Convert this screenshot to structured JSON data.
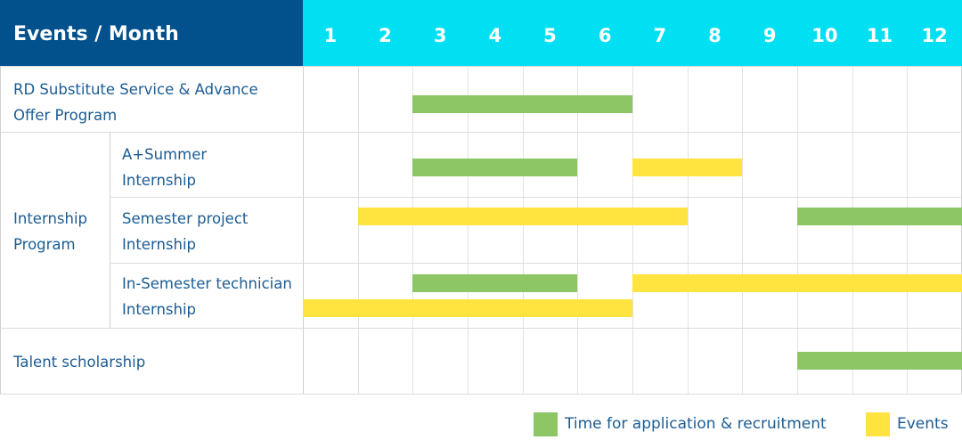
{
  "header": {
    "title": "Events / Month"
  },
  "colors": {
    "header_dark": "#02508C",
    "header_cyan": "#00E0F2",
    "application": "#8CC665",
    "events": "#FFE33F",
    "text": "#1B5C94"
  },
  "rows": {
    "rd": "RD Substitute Service & Advance Offer Program",
    "group": "Internship Program",
    "summer": "A+Summer Internship",
    "semester": "Semester project Internship",
    "technician": "In-Semester technician Internship",
    "talent": "Talent scholarship"
  },
  "legend": {
    "application": "Time for application & recruitment",
    "events": "Events"
  },
  "chart_data": {
    "type": "gantt",
    "xlabel": "Month",
    "categories": [
      "1",
      "2",
      "3",
      "4",
      "5",
      "6",
      "7",
      "8",
      "9",
      "10",
      "11",
      "12"
    ],
    "series": [
      {
        "name": "Time for application & recruitment",
        "color": "#8CC665"
      },
      {
        "name": "Events",
        "color": "#FFE33F"
      }
    ],
    "bars": [
      {
        "row": "RD Substitute Service & Advance Offer Program",
        "series": "Time for application & recruitment",
        "start": 3,
        "end": 6
      },
      {
        "row": "A+Summer Internship",
        "series": "Time for application & recruitment",
        "start": 3,
        "end": 5
      },
      {
        "row": "A+Summer Internship",
        "series": "Events",
        "start": 7,
        "end": 8
      },
      {
        "row": "Semester project Internship",
        "series": "Time for application & recruitment",
        "start": 10,
        "end": 12
      },
      {
        "row": "Semester project Internship",
        "series": "Events",
        "start": 2,
        "end": 7
      },
      {
        "row": "In-Semester technician Internship",
        "series": "Time for application & recruitment",
        "start": 3,
        "end": 5
      },
      {
        "row": "In-Semester technician Internship",
        "series": "Events",
        "start": 7,
        "end": 12
      },
      {
        "row": "In-Semester technician Internship",
        "series": "Events",
        "start": 1,
        "end": 6
      },
      {
        "row": "Talent scholarship",
        "series": "Time for application & recruitment",
        "start": 10,
        "end": 12
      }
    ]
  }
}
